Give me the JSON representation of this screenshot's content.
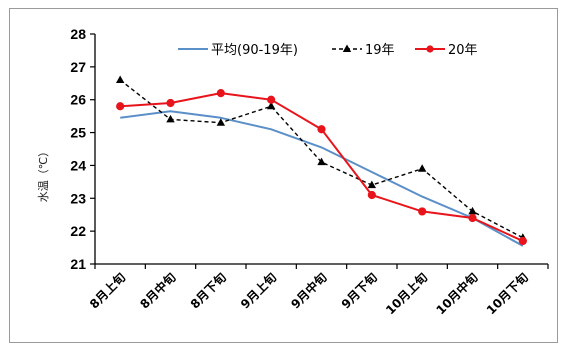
{
  "chart_data": {
    "type": "line",
    "title": "",
    "xlabel": "",
    "ylabel": "水温（℃）",
    "ylim": [
      21,
      28
    ],
    "yticks": [
      21,
      22,
      23,
      24,
      25,
      26,
      27,
      28
    ],
    "grid": false,
    "legend_position": "top",
    "categories": [
      "8月上旬",
      "8月中旬",
      "8月下旬",
      "9月上旬",
      "9月中旬",
      "9月下旬",
      "10月上旬",
      "10月中旬",
      "10月下旬"
    ],
    "series": [
      {
        "name": "平均(90-19年)",
        "color": "#5b8fc7",
        "marker": "none",
        "dash": "solid",
        "values": [
          25.45,
          25.65,
          25.45,
          25.1,
          24.55,
          23.8,
          23.05,
          22.4,
          21.55
        ]
      },
      {
        "name": "19年",
        "color": "#000000",
        "marker": "triangle",
        "dash": "dashed",
        "values": [
          26.6,
          25.4,
          25.3,
          25.8,
          24.1,
          23.4,
          23.9,
          22.6,
          21.8
        ]
      },
      {
        "name": "20年",
        "color": "#e8141b",
        "marker": "circle",
        "dash": "solid",
        "values": [
          25.8,
          25.9,
          26.2,
          26.0,
          25.1,
          23.1,
          22.6,
          22.4,
          21.7
        ]
      }
    ]
  }
}
